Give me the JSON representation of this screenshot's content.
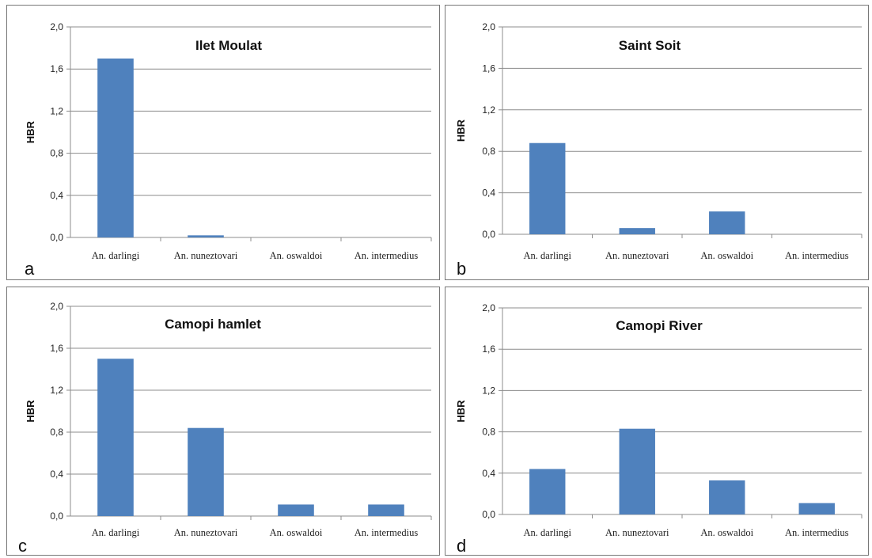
{
  "chart_data": [
    {
      "type": "bar",
      "panel_label": "a",
      "title": "Ilet Moulat",
      "ylabel": "HBR",
      "xlabel": "",
      "categories": [
        "An. darlingi",
        "An. nuneztovari",
        "An. oswaldoi",
        "An. intermedius"
      ],
      "values": [
        1.7,
        0.02,
        0.0,
        0.0
      ],
      "ylim": [
        0,
        2.0
      ],
      "yticks": [
        "0,0",
        "0,4",
        "0,8",
        "1,2",
        "1,6",
        "2,0"
      ],
      "grid": true,
      "color": "#4F81BD"
    },
    {
      "type": "bar",
      "panel_label": "b",
      "title": "Saint Soit",
      "ylabel": "HBR",
      "xlabel": "",
      "categories": [
        "An. darlingi",
        "An. nuneztovari",
        "An. oswaldoi",
        "An. intermedius"
      ],
      "values": [
        0.88,
        0.06,
        0.22,
        0.0
      ],
      "ylim": [
        0,
        2.0
      ],
      "yticks": [
        "0,0",
        "0,4",
        "0,8",
        "1,2",
        "1,6",
        "2,0"
      ],
      "grid": true,
      "color": "#4F81BD"
    },
    {
      "type": "bar",
      "panel_label": "c",
      "title": "Camopi  hamlet",
      "ylabel": "HBR",
      "xlabel": "",
      "categories": [
        "An. darlingi",
        "An. nuneztovari",
        "An. oswaldoi",
        "An. intermedius"
      ],
      "values": [
        1.5,
        0.84,
        0.11,
        0.11
      ],
      "ylim": [
        0,
        2.0
      ],
      "yticks": [
        "0,0",
        "0,4",
        "0,8",
        "1,2",
        "1,6",
        "2,0"
      ],
      "grid": true,
      "color": "#4F81BD"
    },
    {
      "type": "bar",
      "panel_label": "d",
      "title": "Camopi River",
      "ylabel": "HBR",
      "xlabel": "",
      "categories": [
        "An. darlingi",
        "An. nuneztovari",
        "An. oswaldoi",
        "An. intermedius"
      ],
      "values": [
        0.44,
        0.83,
        0.33,
        0.11
      ],
      "ylim": [
        0,
        2.0
      ],
      "yticks": [
        "0,0",
        "0,4",
        "0,8",
        "1,2",
        "1,6",
        "2,0"
      ],
      "grid": true,
      "color": "#4F81BD"
    }
  ]
}
